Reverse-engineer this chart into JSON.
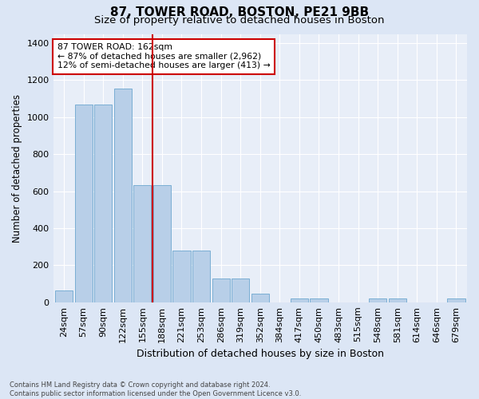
{
  "title": "87, TOWER ROAD, BOSTON, PE21 9BB",
  "subtitle": "Size of property relative to detached houses in Boston",
  "xlabel": "Distribution of detached houses by size in Boston",
  "ylabel": "Number of detached properties",
  "footer": "Contains HM Land Registry data © Crown copyright and database right 2024.\nContains public sector information licensed under the Open Government Licence v3.0.",
  "categories": [
    "24sqm",
    "57sqm",
    "90sqm",
    "122sqm",
    "155sqm",
    "188sqm",
    "221sqm",
    "253sqm",
    "286sqm",
    "319sqm",
    "352sqm",
    "384sqm",
    "417sqm",
    "450sqm",
    "483sqm",
    "515sqm",
    "548sqm",
    "581sqm",
    "614sqm",
    "646sqm",
    "679sqm"
  ],
  "values": [
    62,
    1068,
    1068,
    1155,
    632,
    632,
    280,
    280,
    130,
    130,
    45,
    0,
    22,
    22,
    0,
    0,
    22,
    22,
    0,
    0,
    22
  ],
  "bar_color": "#b8cfe8",
  "bar_edge_color": "#7aaed4",
  "vline_index": 5,
  "vline_color": "#cc0000",
  "annotation_text": "87 TOWER ROAD: 162sqm\n← 87% of detached houses are smaller (2,962)\n12% of semi-detached houses are larger (413) →",
  "annotation_box_color": "#ffffff",
  "annotation_box_edge": "#cc0000",
  "ylim": [
    0,
    1450
  ],
  "yticks": [
    0,
    200,
    400,
    600,
    800,
    1000,
    1200,
    1400
  ],
  "bg_color": "#dce6f5",
  "plot_bg_color": "#e8eef8",
  "grid_color": "#ffffff",
  "title_fontsize": 11,
  "subtitle_fontsize": 9.5,
  "tick_fontsize": 8,
  "ylabel_fontsize": 8.5,
  "xlabel_fontsize": 9
}
